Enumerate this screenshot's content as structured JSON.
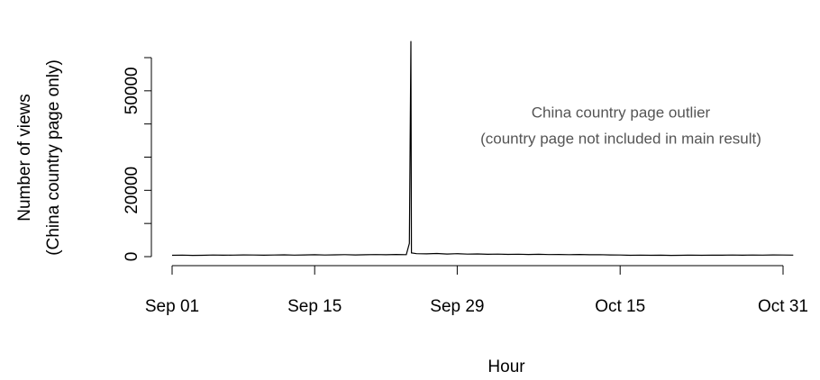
{
  "chart_data": {
    "type": "line",
    "xlabel": "Hour",
    "ylabel": [
      "Number of views",
      "(China country page only)"
    ],
    "annotation": [
      "China country page outlier",
      "(country page not included in main result)"
    ],
    "xlim": [
      0,
      60
    ],
    "xticks": [
      {
        "value": 0,
        "label": "Sep 01"
      },
      {
        "value": 14,
        "label": "Sep 15"
      },
      {
        "value": 28,
        "label": "Sep 29"
      },
      {
        "value": 44,
        "label": "Oct 15"
      },
      {
        "value": 60,
        "label": "Oct 31"
      }
    ],
    "ylim": [
      0,
      60000
    ],
    "yticks": [
      0,
      20000,
      50000
    ],
    "minor_yticks": [
      10000,
      30000,
      40000,
      60000
    ],
    "series": [
      {
        "color": "#000000",
        "x": [
          0,
          1,
          2,
          3,
          4,
          5,
          6,
          7,
          8,
          9,
          10,
          11,
          12,
          13,
          14,
          15,
          16,
          17,
          18,
          19,
          20,
          21,
          22,
          23,
          23.3,
          23.45,
          23.5,
          24,
          25,
          26,
          27,
          28,
          29,
          30,
          31,
          32,
          33,
          34,
          35,
          36,
          37,
          38,
          39,
          40,
          41,
          42,
          43,
          44,
          45,
          46,
          47,
          48,
          49,
          50,
          51,
          52,
          53,
          54,
          55,
          56,
          57,
          58,
          59,
          60,
          61
        ],
        "values": [
          400,
          450,
          380,
          420,
          500,
          430,
          460,
          520,
          480,
          440,
          500,
          550,
          470,
          520,
          560,
          500,
          540,
          600,
          520,
          580,
          620,
          560,
          640,
          600,
          4000,
          65000,
          1100,
          900,
          850,
          950,
          800,
          900,
          750,
          820,
          700,
          760,
          680,
          720,
          650,
          700,
          620,
          660,
          600,
          640,
          580,
          600,
          520,
          480,
          420,
          450,
          400,
          430,
          380,
          420,
          450,
          400,
          470,
          430,
          480,
          440,
          500,
          460,
          520,
          480,
          450
        ]
      }
    ]
  }
}
